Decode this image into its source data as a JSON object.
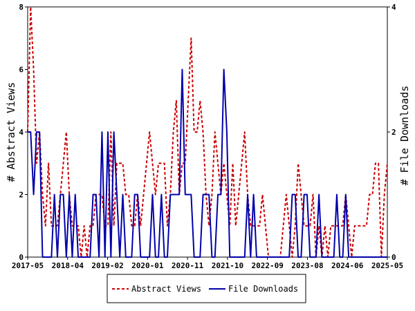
{
  "chart_data": {
    "type": "line",
    "ylabel_left": "# Abstract Views",
    "ylabel_right": "# File Downloads",
    "x_ticks": [
      "2017-05",
      "2018-04",
      "2019-02",
      "2020-01",
      "2020-11",
      "2021-10",
      "2022-09",
      "2023-08",
      "2024-06",
      "2025-05"
    ],
    "ylim_left": [
      0,
      8
    ],
    "ylim_right": [
      0,
      4
    ],
    "y_ticks_left": [
      "0",
      "2",
      "4",
      "6",
      "8"
    ],
    "y_ticks_right": [
      "0",
      "2",
      "4"
    ],
    "grid": false,
    "legend_position": "bottom",
    "series": [
      {
        "name": "Abstract Views",
        "axis": "left",
        "color": "#cc0000",
        "style": "dashed",
        "values": [
          4,
          8,
          6,
          3,
          4,
          2,
          1,
          3,
          1,
          1,
          1,
          2,
          3,
          4,
          2,
          1,
          1,
          1,
          0,
          1,
          0,
          1,
          1,
          2,
          2,
          2,
          1,
          1,
          4,
          1,
          3,
          3,
          3,
          2,
          2,
          1,
          1,
          2,
          1,
          2,
          3,
          4,
          3,
          2,
          3,
          3,
          3,
          1,
          2,
          4,
          5,
          2,
          3,
          3,
          5,
          7,
          4,
          4,
          5,
          4,
          2,
          1,
          2,
          4,
          3,
          2,
          3,
          2,
          1,
          3,
          1,
          2,
          3,
          4,
          2,
          1,
          1,
          1,
          1,
          2,
          1,
          0,
          0,
          0,
          0,
          0,
          1,
          2,
          1,
          0,
          1,
          3,
          2,
          1,
          1,
          1,
          2,
          0,
          1,
          0,
          1,
          0,
          1,
          1,
          1,
          1,
          1,
          2,
          1,
          0,
          1,
          1,
          1,
          1,
          1,
          2,
          2,
          3,
          3,
          0,
          2,
          3
        ]
      },
      {
        "name": "File Downloads",
        "axis": "right",
        "color": "#0000aa",
        "style": "solid",
        "values": [
          2,
          2,
          1,
          2,
          2,
          0,
          0,
          0,
          0,
          1,
          0,
          1,
          1,
          0,
          1,
          0,
          1,
          0,
          0,
          0,
          0,
          0,
          1,
          1,
          0,
          2,
          0,
          2,
          0,
          2,
          1,
          0,
          1,
          0,
          0,
          0,
          1,
          1,
          0,
          0,
          0,
          0,
          1,
          0,
          0,
          1,
          0,
          0,
          1,
          1,
          1,
          1,
          3,
          1,
          1,
          1,
          0,
          0,
          0,
          1,
          1,
          1,
          0,
          0,
          1,
          1,
          3,
          2,
          0,
          0,
          0,
          0,
          0,
          0,
          1,
          0,
          1,
          0,
          0,
          0,
          0,
          0,
          0,
          0,
          0,
          0,
          0,
          0,
          0,
          1,
          1,
          0,
          0,
          1,
          1,
          0,
          0,
          0,
          1,
          0,
          0,
          0,
          0,
          0,
          1,
          0,
          0,
          1,
          0,
          0,
          0,
          0,
          0,
          0,
          0,
          0,
          0,
          0,
          0,
          0,
          0,
          0
        ]
      }
    ]
  }
}
